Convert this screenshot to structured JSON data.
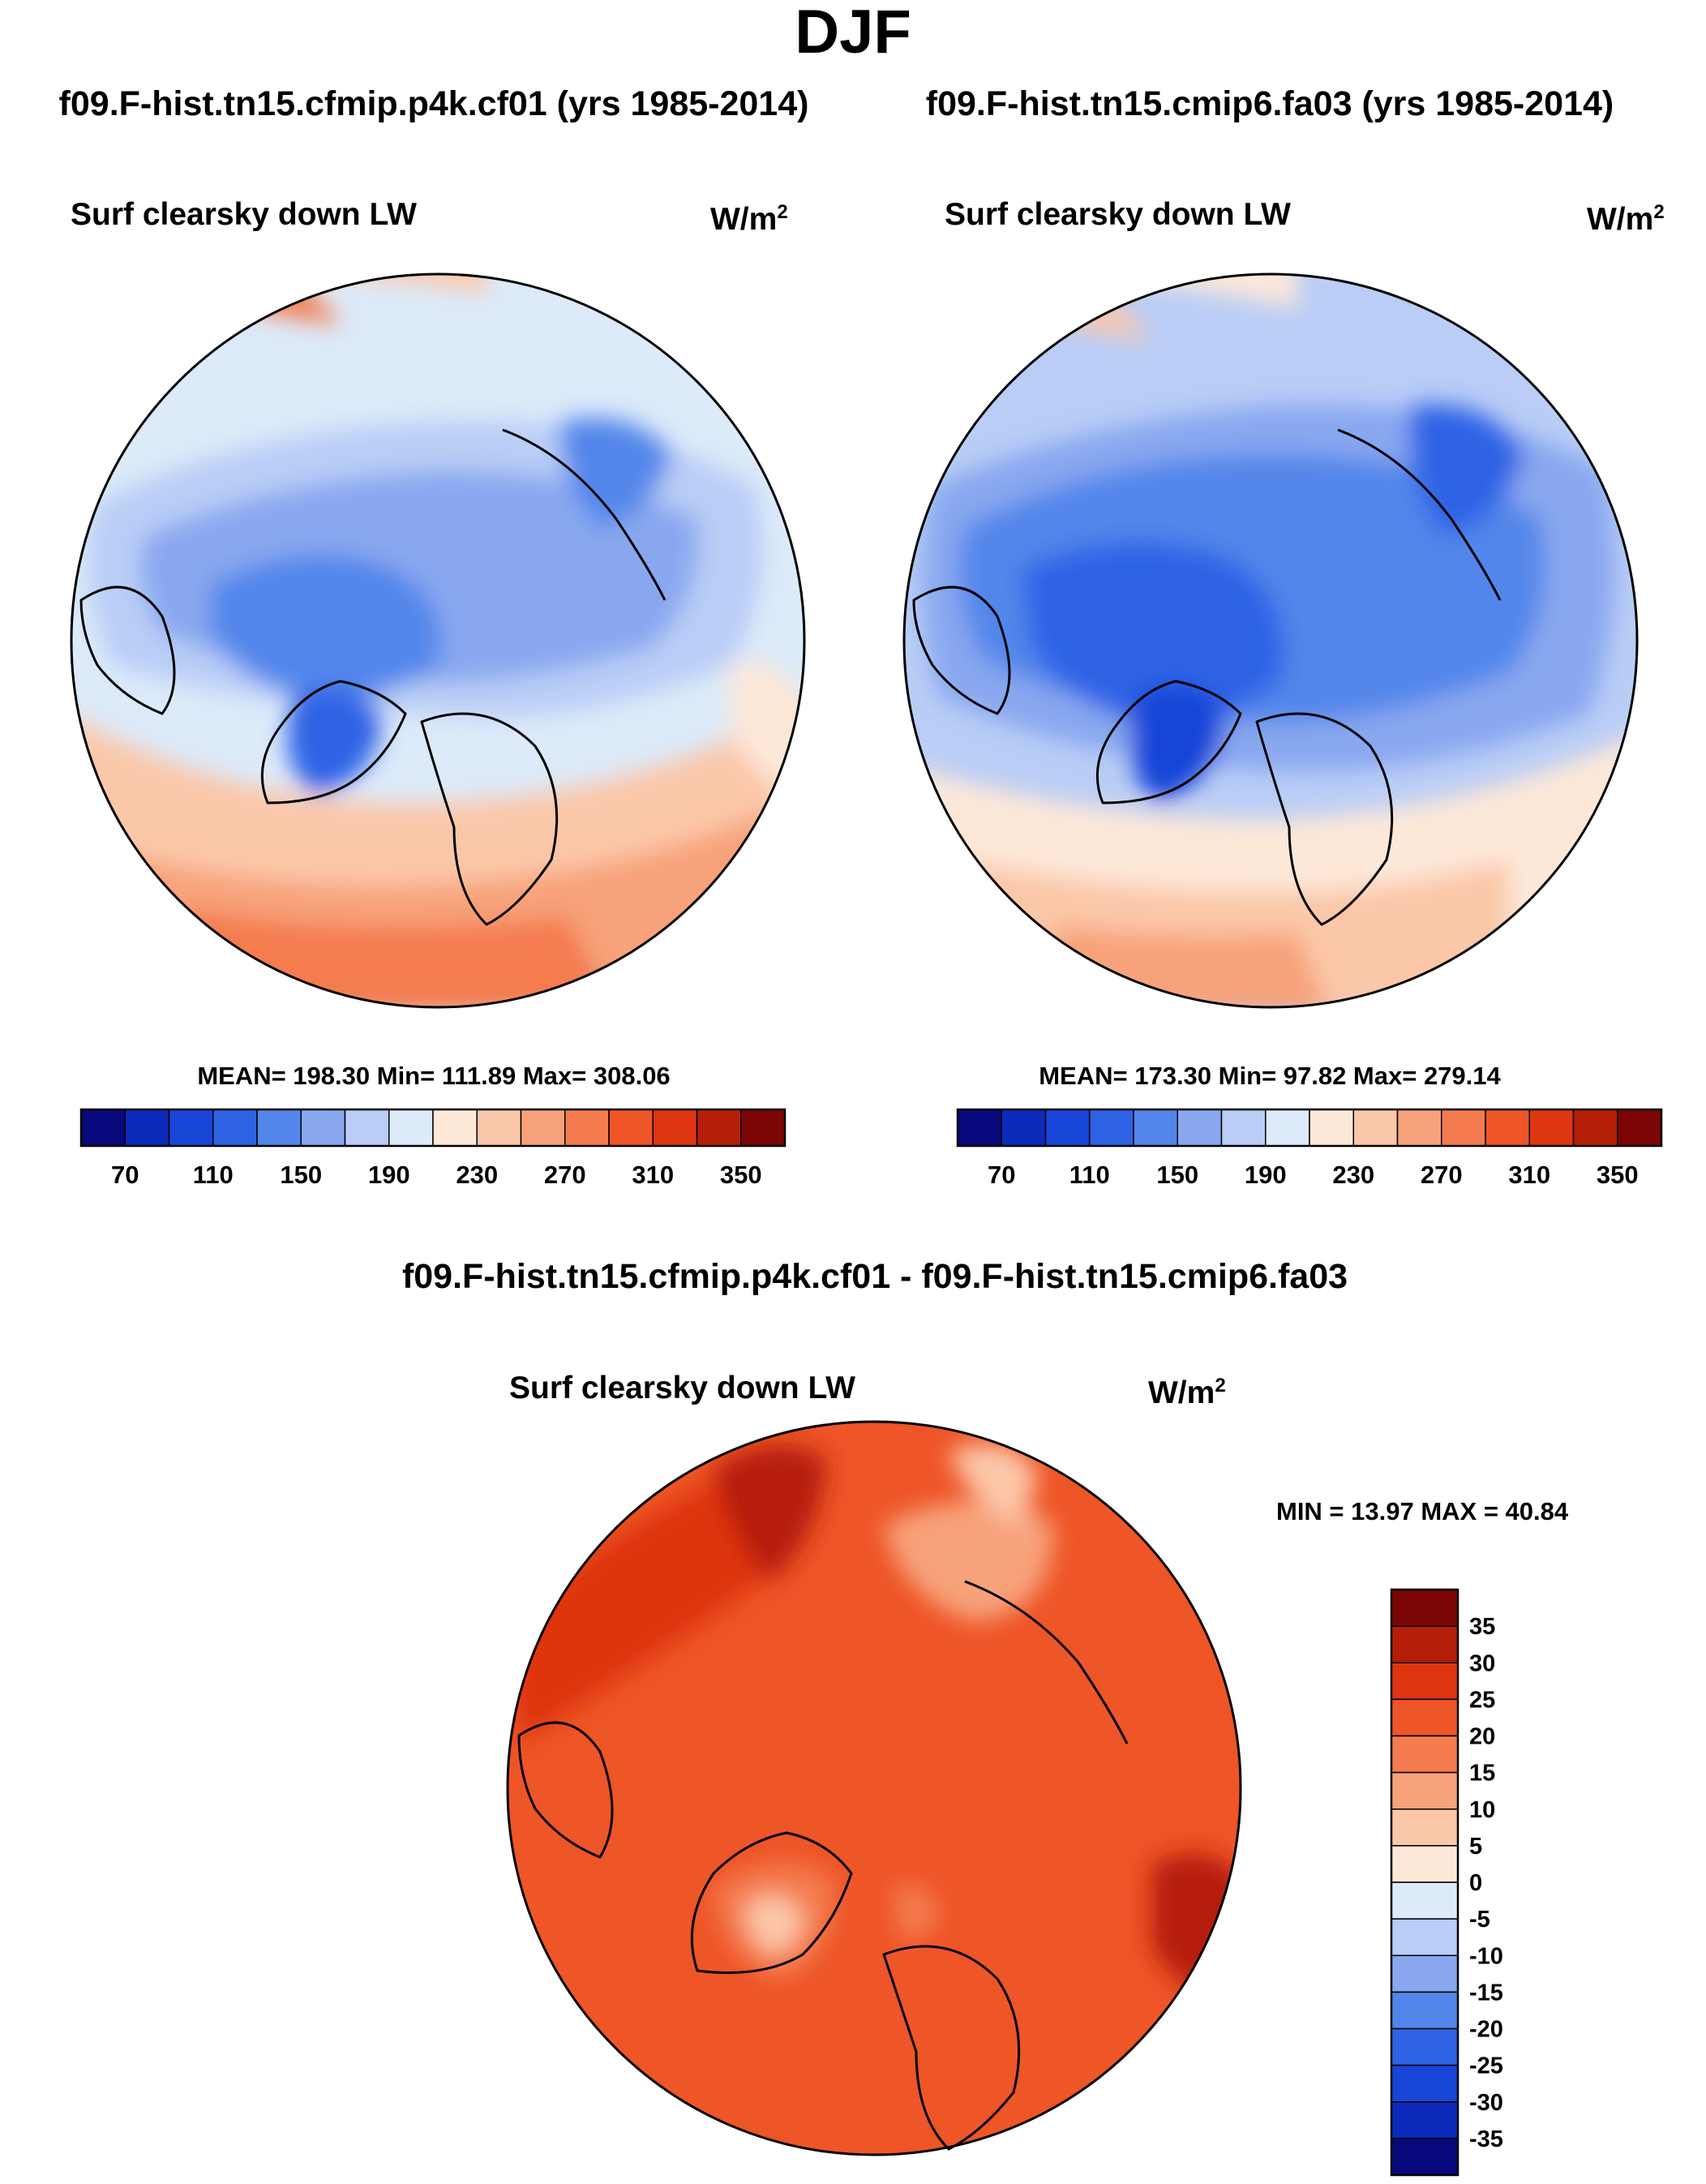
{
  "season": "DJF",
  "colors": {
    "abs_palette": [
      "#08087d",
      "#0c2bbb",
      "#1745d8",
      "#2e63e6",
      "#5286ea",
      "#88a7ef",
      "#b9cdf6",
      "#dceaf9",
      "#fde8d8",
      "#fbc7a9",
      "#f7a27a",
      "#f47b4f",
      "#ee5527",
      "#de3610",
      "#b51e07",
      "#7c0505"
    ],
    "diff_palette": [
      "#08087d",
      "#0c2bbb",
      "#1745d8",
      "#2e63e6",
      "#5286ea",
      "#88a7ef",
      "#b9cdf6",
      "#dceaf9",
      "#fde8d8",
      "#fbc7a9",
      "#f7a27a",
      "#f47b4f",
      "#ee5527",
      "#de3610",
      "#b51e07",
      "#7c0505"
    ]
  },
  "panels": [
    {
      "title": "f09.F-hist.tn15.cfmip.p4k.cf01 (yrs 1985-2014)",
      "variable": "Surf clearsky down LW",
      "units_base": "W/m",
      "units_exp": "2",
      "stats": "MEAN= 198.30  Min= 111.89  Max= 308.06"
    },
    {
      "title": "f09.F-hist.tn15.cmip6.fa03 (yrs 1985-2014)",
      "variable": "Surf clearsky down LW",
      "units_base": "W/m",
      "units_exp": "2",
      "stats": "MEAN= 173.30  Min=  97.82  Max= 279.14"
    }
  ],
  "diff": {
    "title": "f09.F-hist.tn15.cfmip.p4k.cf01 - f09.F-hist.tn15.cmip6.fa03",
    "variable": "Surf clearsky down LW",
    "units_base": "W/m",
    "units_exp": "2",
    "stats": "MIN =  13.97 MAX =  40.84"
  },
  "chart_data": [
    {
      "type": "heatmap",
      "projection": "north-polar-stereographic",
      "title": "f09.F-hist.tn15.cfmip.p4k.cf01 (yrs 1985-2014)",
      "variable": "Surf clearsky down LW",
      "units": "W/m2",
      "mean": 198.3,
      "min": 111.89,
      "max": 308.06,
      "colorbar_levels": [
        70,
        90,
        110,
        130,
        150,
        170,
        190,
        210,
        230,
        250,
        270,
        290,
        310,
        330,
        350
      ],
      "colorbar_tick_labels": [
        "70",
        "110",
        "150",
        "190",
        "230",
        "270",
        "310",
        "350"
      ]
    },
    {
      "type": "heatmap",
      "projection": "north-polar-stereographic",
      "title": "f09.F-hist.tn15.cmip6.fa03 (yrs 1985-2014)",
      "variable": "Surf clearsky down LW",
      "units": "W/m2",
      "mean": 173.3,
      "min": 97.82,
      "max": 279.14,
      "colorbar_levels": [
        70,
        90,
        110,
        130,
        150,
        170,
        190,
        210,
        230,
        250,
        270,
        290,
        310,
        330,
        350
      ],
      "colorbar_tick_labels": [
        "70",
        "110",
        "150",
        "190",
        "230",
        "270",
        "310",
        "350"
      ]
    },
    {
      "type": "heatmap",
      "projection": "north-polar-stereographic",
      "title": "f09.F-hist.tn15.cfmip.p4k.cf01 - f09.F-hist.tn15.cmip6.fa03",
      "variable": "Surf clearsky down LW",
      "units": "W/m2",
      "min": 13.97,
      "max": 40.84,
      "colorbar_levels": [
        -35,
        -30,
        -25,
        -20,
        -15,
        -10,
        -5,
        0,
        5,
        10,
        15,
        20,
        25,
        30,
        35
      ],
      "colorbar_tick_labels": [
        "35",
        "30",
        "25",
        "20",
        "15",
        "10",
        "5",
        "0",
        "-5",
        "-10",
        "-15",
        "-20",
        "-25",
        "-30",
        "-35"
      ]
    }
  ]
}
